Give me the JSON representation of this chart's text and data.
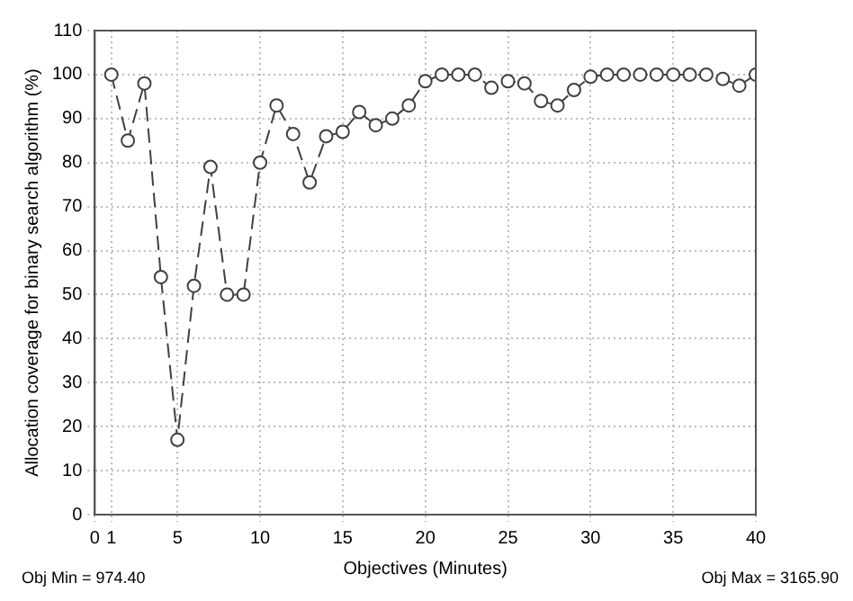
{
  "chart_data": {
    "type": "line",
    "xlabel": "Objectives (Minutes)",
    "ylabel": "Allocation coverage for binary search algorithm (%)",
    "x": [
      1,
      2,
      3,
      4,
      5,
      6,
      7,
      8,
      9,
      10,
      11,
      12,
      13,
      14,
      15,
      16,
      17,
      18,
      19,
      20,
      21,
      22,
      23,
      24,
      25,
      26,
      27,
      28,
      29,
      30,
      31,
      32,
      33,
      34,
      35,
      36,
      37,
      38,
      39,
      40
    ],
    "series": [
      {
        "color": "#404040",
        "values": [
          100,
          85,
          98,
          54,
          17,
          52,
          79,
          50,
          50,
          80,
          93,
          86.5,
          75.5,
          86,
          87,
          91.5,
          88.5,
          90,
          93,
          98.5,
          100,
          100,
          100,
          97,
          98.5,
          98,
          94,
          93,
          96.5,
          99.5,
          100,
          100,
          100,
          100,
          100,
          100,
          100,
          99,
          97.5,
          100
        ]
      }
    ],
    "xlim": [
      0,
      40
    ],
    "xticks": [
      0,
      1,
      5,
      10,
      15,
      20,
      25,
      30,
      35,
      40
    ],
    "ylim": [
      0,
      110
    ],
    "yticks": [
      0,
      10,
      20,
      30,
      40,
      50,
      60,
      70,
      80,
      90,
      100,
      110
    ],
    "grid": true,
    "legend": false,
    "marker": "circle",
    "line_style": "dashed",
    "annotations": [
      "Obj Min = 974.40",
      "Obj Max = 3165.90"
    ]
  }
}
